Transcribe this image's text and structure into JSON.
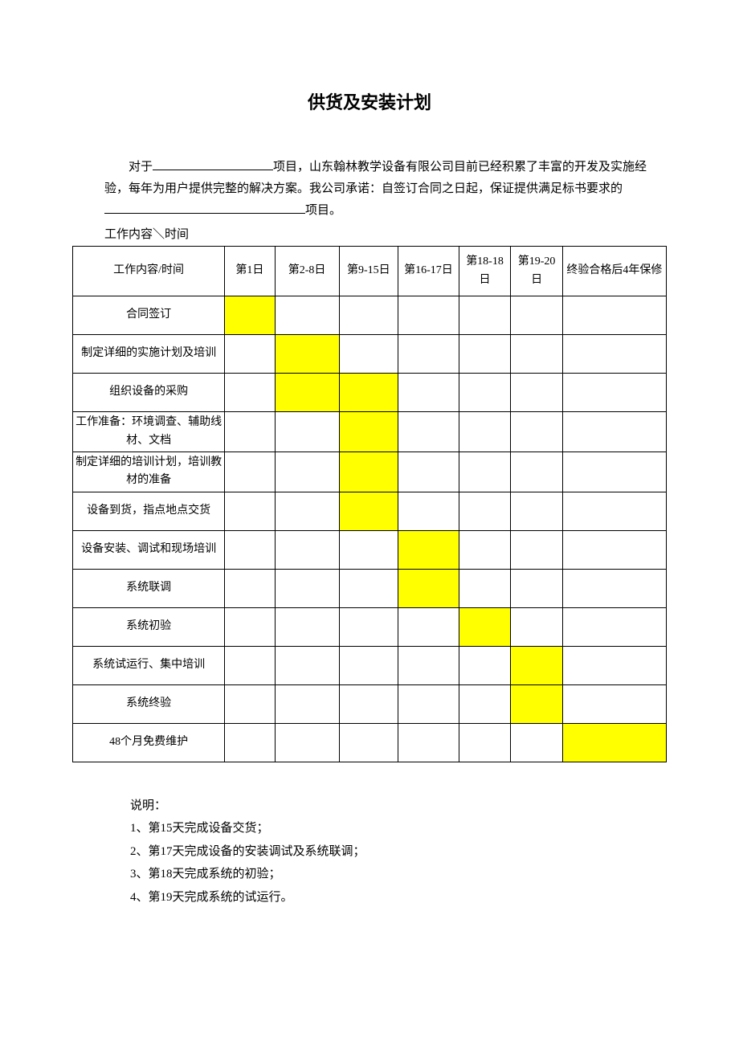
{
  "title": "供货及安装计划",
  "intro_parts": {
    "p1": "对于",
    "p2": "项目，山东翰林教学设备有限公司目前已经积累了丰富的开发及实施经验，每年为用户提供完整的解决方案。我公司承诺：自签订合同之日起，保证提供满足标书要求的",
    "p3": "项目。"
  },
  "sub_label": "工作内容＼时间",
  "columns": [
    "工作内容/时间",
    "第1日",
    "第2-8日",
    "第9-15日",
    "第16-17日",
    "第18-18日",
    "第19-20日",
    "终验合格后4年保修"
  ],
  "rows": [
    {
      "task": "合同签订",
      "cells": [
        true,
        false,
        false,
        false,
        false,
        false,
        false
      ]
    },
    {
      "task": "制定详细的实施计划及培训",
      "cells": [
        false,
        true,
        false,
        false,
        false,
        false,
        false
      ]
    },
    {
      "task": "组织设备的采购",
      "cells": [
        false,
        true,
        true,
        false,
        false,
        false,
        false
      ]
    },
    {
      "task": "工作准备：环境调查、辅助线材、文档",
      "cells": [
        false,
        false,
        true,
        false,
        false,
        false,
        false
      ]
    },
    {
      "task": "制定详细的培训计划，培训教材的准备",
      "cells": [
        false,
        false,
        true,
        false,
        false,
        false,
        false
      ]
    },
    {
      "task": "设备到货，指点地点交货",
      "cells": [
        false,
        false,
        true,
        false,
        false,
        false,
        false
      ]
    },
    {
      "task": "设备安装、调试和现场培训",
      "cells": [
        false,
        false,
        false,
        true,
        false,
        false,
        false
      ]
    },
    {
      "task": "系统联调",
      "cells": [
        false,
        false,
        false,
        true,
        false,
        false,
        false
      ]
    },
    {
      "task": "系统初验",
      "cells": [
        false,
        false,
        false,
        false,
        true,
        false,
        false
      ]
    },
    {
      "task": "系统试运行、集中培训",
      "cells": [
        false,
        false,
        false,
        false,
        false,
        true,
        false
      ]
    },
    {
      "task": "系统终验",
      "cells": [
        false,
        false,
        false,
        false,
        false,
        true,
        false
      ]
    },
    {
      "task": "48个月免费维护",
      "cells": [
        false,
        false,
        false,
        false,
        false,
        false,
        true
      ]
    }
  ],
  "notes_title": "说明：",
  "notes": [
    "1、第15天完成设备交货；",
    "2、第17天完成设备的安装调试及系统联调；",
    "3、第18天完成系统的初验；",
    "4、第19天完成系统的试运行。"
  ],
  "highlight_color": "#ffff00",
  "background_color": "#ffffff",
  "border_color": "#000000"
}
